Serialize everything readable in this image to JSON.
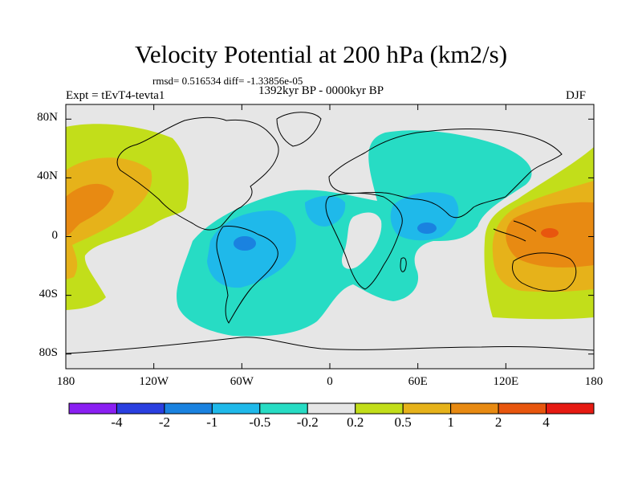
{
  "title": "Velocity Potential at 200 hPa (km2/s)",
  "stats": "rmsd= 0.516534 diff= -1.33856e-05",
  "experiment": "Expt = tEvT4-tevta1",
  "period": "1392kyr BP - 0000kyr BP",
  "season": "DJF",
  "y_ticks": [
    {
      "label": "80N",
      "lat": 80
    },
    {
      "label": "40N",
      "lat": 40
    },
    {
      "label": "0",
      "lat": 0
    },
    {
      "label": "40S",
      "lat": -40
    },
    {
      "label": "80S",
      "lat": -80
    }
  ],
  "x_ticks": [
    {
      "label": "180",
      "lon": -180
    },
    {
      "label": "120W",
      "lon": -120
    },
    {
      "label": "60W",
      "lon": -60
    },
    {
      "label": "0",
      "lon": 0
    },
    {
      "label": "60E",
      "lon": 60
    },
    {
      "label": "120E",
      "lon": 120
    },
    {
      "label": "180",
      "lon": 180
    }
  ],
  "colorbar": {
    "colors": [
      "#8a1ff2",
      "#2a3fe0",
      "#1a82e0",
      "#1fb9ea",
      "#27dcc4",
      "#e6e6e6",
      "#c2de1a",
      "#e6b21a",
      "#e88a12",
      "#e8560e",
      "#e61a12"
    ],
    "labels": [
      "-4",
      "-2",
      "-1",
      "-0.5",
      "-0.2",
      "0.2",
      "0.5",
      "1",
      "2",
      "4"
    ]
  },
  "map": {
    "lon_range": [
      -180,
      180
    ],
    "lat_range": [
      -90,
      90
    ],
    "background_color": "#e6e6e6"
  }
}
